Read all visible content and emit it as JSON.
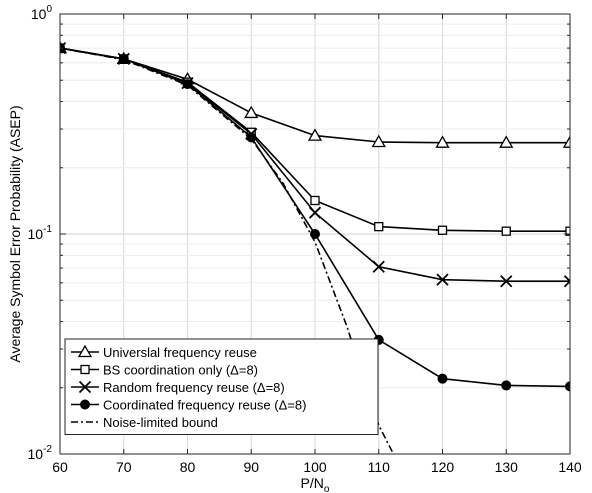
{
  "chart_data": {
    "type": "line",
    "xlabel": "P/N",
    "xlabel_sub": "o",
    "ylabel": "Average Symbol Error Probability (ASEP)",
    "x": [
      60,
      70,
      80,
      90,
      100,
      110,
      120,
      130,
      140
    ],
    "xlim": [
      60,
      140
    ],
    "ylim": [
      0.01,
      1
    ],
    "yscale": "log",
    "grid": true,
    "legend_position": "bottom-left",
    "xticks": [
      "60",
      "70",
      "80",
      "90",
      "100",
      "110",
      "120",
      "130",
      "140"
    ],
    "yticks": [
      {
        "value": 1,
        "base": "10",
        "exp": "0"
      },
      {
        "value": 0.1,
        "base": "10",
        "exp": "-1"
      },
      {
        "value": 0.01,
        "base": "10",
        "exp": "-2"
      }
    ],
    "series": [
      {
        "name": "Universlal frequency reuse",
        "marker": "triangle",
        "dash": "solid",
        "x": [
          60,
          70,
          80,
          90,
          100,
          110,
          120,
          130,
          140
        ],
        "values": [
          0.7,
          0.625,
          0.505,
          0.355,
          0.28,
          0.262,
          0.26,
          0.26,
          0.26
        ]
      },
      {
        "name": "BS coordination only (Δ=8)",
        "marker": "square",
        "dash": "solid",
        "x": [
          60,
          70,
          80,
          90,
          100,
          110,
          120,
          130,
          140
        ],
        "values": [
          0.7,
          0.625,
          0.49,
          0.29,
          0.142,
          0.108,
          0.104,
          0.103,
          0.103
        ]
      },
      {
        "name": "Random frequency reuse (Δ=8)",
        "marker": "x",
        "dash": "solid",
        "x": [
          60,
          70,
          80,
          90,
          100,
          110,
          120,
          130,
          140
        ],
        "values": [
          0.7,
          0.625,
          0.485,
          0.285,
          0.125,
          0.071,
          0.062,
          0.061,
          0.061
        ]
      },
      {
        "name": "Coordinated frequency reuse (Δ=8)",
        "marker": "circle",
        "dash": "solid",
        "x": [
          60,
          70,
          80,
          90,
          100,
          110,
          120,
          130,
          140
        ],
        "values": [
          0.7,
          0.625,
          0.48,
          0.275,
          0.1,
          0.033,
          0.022,
          0.0205,
          0.0203
        ]
      },
      {
        "name": "Noise-limited bound",
        "marker": "none",
        "dash": "dashdot",
        "x": [
          60,
          70,
          80,
          90,
          95,
          100,
          105,
          110,
          112.3
        ],
        "values": [
          0.7,
          0.62,
          0.475,
          0.27,
          0.17,
          0.092,
          0.038,
          0.0135,
          0.01
        ]
      }
    ]
  }
}
